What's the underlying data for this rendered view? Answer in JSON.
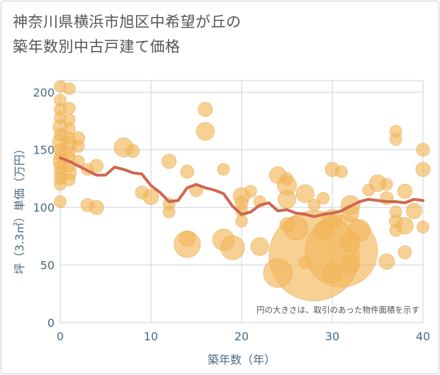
{
  "chart_data": {
    "type": "scatter",
    "title_lines": [
      "神奈川県横浜市旭区中希望が丘の",
      "築年数別中古戸建て価格"
    ],
    "xlabel": "築年数（年）",
    "ylabel": "坪（3.3㎡）単価（万円）",
    "note": "円の大きさは、取引のあった物件面積を示す",
    "xlim": [
      0,
      40
    ],
    "ylim": [
      0,
      210
    ],
    "x_ticks": [
      0,
      10,
      20,
      30,
      40
    ],
    "y_ticks": [
      0,
      50,
      100,
      150,
      200
    ],
    "colors": {
      "bubble": "#f2b75b",
      "line": "#d06650",
      "grid": "#c8d3e0",
      "text": "#4a6b82"
    },
    "bubbles": [
      {
        "x": 0,
        "y": 205,
        "s": 1.0
      },
      {
        "x": 0,
        "y": 193,
        "s": 1.0
      },
      {
        "x": 0,
        "y": 185,
        "s": 1.0
      },
      {
        "x": 0,
        "y": 178,
        "s": 1.0
      },
      {
        "x": 0,
        "y": 170,
        "s": 1.2
      },
      {
        "x": 0,
        "y": 163,
        "s": 1.0
      },
      {
        "x": 0,
        "y": 157,
        "s": 1.3
      },
      {
        "x": 0,
        "y": 150,
        "s": 1.0
      },
      {
        "x": 0,
        "y": 145,
        "s": 1.0
      },
      {
        "x": 0,
        "y": 140,
        "s": 1.2
      },
      {
        "x": 0,
        "y": 135,
        "s": 1.0
      },
      {
        "x": 0,
        "y": 130,
        "s": 1.0
      },
      {
        "x": 0,
        "y": 125,
        "s": 1.0
      },
      {
        "x": 0,
        "y": 120,
        "s": 1.0
      },
      {
        "x": 0,
        "y": 105,
        "s": 1.0
      },
      {
        "x": 1,
        "y": 203,
        "s": 1.0
      },
      {
        "x": 1,
        "y": 186,
        "s": 1.0
      },
      {
        "x": 1,
        "y": 176,
        "s": 1.0
      },
      {
        "x": 1,
        "y": 168,
        "s": 1.0
      },
      {
        "x": 1,
        "y": 160,
        "s": 1.0
      },
      {
        "x": 1,
        "y": 155,
        "s": 1.3
      },
      {
        "x": 1,
        "y": 148,
        "s": 1.0
      },
      {
        "x": 1,
        "y": 143,
        "s": 1.0
      },
      {
        "x": 1,
        "y": 136,
        "s": 1.0
      },
      {
        "x": 1,
        "y": 130,
        "s": 1.2
      },
      {
        "x": 1,
        "y": 124,
        "s": 1.0
      },
      {
        "x": 2,
        "y": 160,
        "s": 1.1
      },
      {
        "x": 2,
        "y": 153,
        "s": 1.0
      },
      {
        "x": 2,
        "y": 140,
        "s": 1.0
      },
      {
        "x": 3,
        "y": 133,
        "s": 1.0
      },
      {
        "x": 3,
        "y": 102,
        "s": 1.1
      },
      {
        "x": 4,
        "y": 136,
        "s": 1.1
      },
      {
        "x": 4,
        "y": 100,
        "s": 1.2
      },
      {
        "x": 7,
        "y": 152,
        "s": 1.6
      },
      {
        "x": 8,
        "y": 149,
        "s": 1.1
      },
      {
        "x": 9,
        "y": 113,
        "s": 1.1
      },
      {
        "x": 10,
        "y": 109,
        "s": 1.3
      },
      {
        "x": 12,
        "y": 140,
        "s": 1.2
      },
      {
        "x": 12,
        "y": 103,
        "s": 1.0
      },
      {
        "x": 12,
        "y": 96,
        "s": 1.0
      },
      {
        "x": 14,
        "y": 131,
        "s": 1.1
      },
      {
        "x": 14,
        "y": 73,
        "s": 1.3
      },
      {
        "x": 14,
        "y": 68,
        "s": 2.2
      },
      {
        "x": 15,
        "y": 115,
        "s": 1.1
      },
      {
        "x": 16,
        "y": 185,
        "s": 1.2
      },
      {
        "x": 16,
        "y": 166,
        "s": 1.5
      },
      {
        "x": 18,
        "y": 133,
        "s": 1.0
      },
      {
        "x": 18,
        "y": 72,
        "s": 1.8
      },
      {
        "x": 19,
        "y": 65,
        "s": 2.0
      },
      {
        "x": 20,
        "y": 110,
        "s": 1.4
      },
      {
        "x": 20,
        "y": 104,
        "s": 1.1
      },
      {
        "x": 20,
        "y": 97,
        "s": 1.0
      },
      {
        "x": 20,
        "y": 88,
        "s": 1.0
      },
      {
        "x": 21,
        "y": 114,
        "s": 1.0
      },
      {
        "x": 22,
        "y": 105,
        "s": 1.0
      },
      {
        "x": 22,
        "y": 66,
        "s": 1.5
      },
      {
        "x": 24,
        "y": 128,
        "s": 1.4
      },
      {
        "x": 24,
        "y": 43,
        "s": 2.4
      },
      {
        "x": 25,
        "y": 125,
        "s": 1.0
      },
      {
        "x": 25,
        "y": 119,
        "s": 1.6
      },
      {
        "x": 25,
        "y": 107,
        "s": 1.5
      },
      {
        "x": 25,
        "y": 85,
        "s": 1.2
      },
      {
        "x": 26,
        "y": 82,
        "s": 2.0
      },
      {
        "x": 27,
        "y": 112,
        "s": 1.5
      },
      {
        "x": 27,
        "y": 52,
        "s": 1.0
      },
      {
        "x": 28,
        "y": 58,
        "s": 7.5
      },
      {
        "x": 28,
        "y": 102,
        "s": 1.0
      },
      {
        "x": 29,
        "y": 108,
        "s": 1.0
      },
      {
        "x": 29,
        "y": 80,
        "s": 1.5
      },
      {
        "x": 30,
        "y": 133,
        "s": 1.2
      },
      {
        "x": 30,
        "y": 90,
        "s": 1.6
      },
      {
        "x": 30,
        "y": 43,
        "s": 1.6
      },
      {
        "x": 31,
        "y": 131,
        "s": 1.0
      },
      {
        "x": 31,
        "y": 62,
        "s": 6.0
      },
      {
        "x": 32,
        "y": 102,
        "s": 1.6
      },
      {
        "x": 32,
        "y": 95,
        "s": 1.4
      },
      {
        "x": 32,
        "y": 70,
        "s": 1.6
      },
      {
        "x": 32,
        "y": 51,
        "s": 1.5
      },
      {
        "x": 33,
        "y": 80,
        "s": 1.8
      },
      {
        "x": 34,
        "y": 115,
        "s": 1.0
      },
      {
        "x": 35,
        "y": 121,
        "s": 1.4
      },
      {
        "x": 36,
        "y": 120,
        "s": 1.0
      },
      {
        "x": 36,
        "y": 108,
        "s": 1.1
      },
      {
        "x": 36,
        "y": 53,
        "s": 1.3
      },
      {
        "x": 37,
        "y": 166,
        "s": 1.0
      },
      {
        "x": 37,
        "y": 159,
        "s": 1.0
      },
      {
        "x": 37,
        "y": 96,
        "s": 1.0
      },
      {
        "x": 37,
        "y": 88,
        "s": 1.1
      },
      {
        "x": 37,
        "y": 80,
        "s": 1.0
      },
      {
        "x": 38,
        "y": 114,
        "s": 1.2
      },
      {
        "x": 38,
        "y": 84,
        "s": 1.4
      },
      {
        "x": 38,
        "y": 61,
        "s": 1.1
      },
      {
        "x": 39,
        "y": 97,
        "s": 1.3
      },
      {
        "x": 40,
        "y": 150,
        "s": 1.1
      },
      {
        "x": 40,
        "y": 83,
        "s": 1.0
      },
      {
        "x": 40,
        "y": 133,
        "s": 1.2
      }
    ],
    "trend": {
      "x": [
        0,
        1,
        2,
        3,
        4,
        5,
        6,
        7,
        8,
        9,
        10,
        11,
        12,
        13,
        14,
        15,
        16,
        17,
        18,
        19,
        20,
        21,
        22,
        23,
        24,
        25,
        26,
        27,
        28,
        29,
        30,
        31,
        32,
        33,
        34,
        35,
        36,
        37,
        38,
        39,
        40
      ],
      "y": [
        143,
        140,
        136,
        132,
        128,
        128,
        135,
        133,
        130,
        129,
        119,
        113,
        105,
        106,
        117,
        120,
        117,
        115,
        112,
        101,
        94,
        96,
        102,
        104,
        97,
        98,
        95,
        94,
        92,
        94,
        95,
        97,
        101,
        105,
        107,
        106,
        105,
        105,
        104,
        107,
        106
      ]
    }
  }
}
